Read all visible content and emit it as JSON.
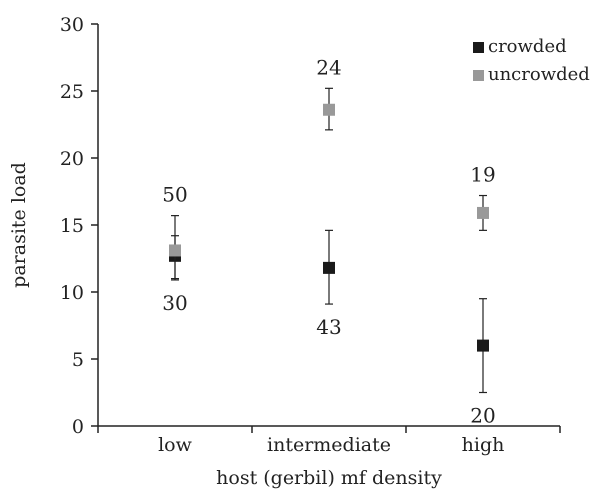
{
  "chart_data": {
    "type": "scatter",
    "title": "",
    "xlabel": "host (gerbil) mf density",
    "ylabel": "parasite load",
    "categories": [
      "low",
      "intermediate",
      "high"
    ],
    "ylim": [
      0,
      30
    ],
    "yticks": [
      "0",
      "5",
      "10",
      "15",
      "20",
      "25",
      "30"
    ],
    "grid": false,
    "legend_position": "top-right",
    "series": [
      {
        "name": "crowded",
        "color": "#1a1a1a",
        "marker": "square",
        "values": [
          12.7,
          11.8,
          6.0
        ],
        "err_low": [
          10.9,
          9.1,
          2.5
        ],
        "err_high": [
          14.2,
          14.6,
          9.5
        ],
        "n_labels": [
          "30",
          "43",
          "20"
        ],
        "n_label_position": "below"
      },
      {
        "name": "uncrowded",
        "color": "#999999",
        "marker": "square",
        "values": [
          13.1,
          23.6,
          15.9
        ],
        "err_low": [
          11.0,
          22.1,
          14.6
        ],
        "err_high": [
          15.7,
          25.2,
          17.2
        ],
        "n_labels": [
          "50",
          "24",
          "19"
        ],
        "n_label_position": "above"
      }
    ]
  }
}
